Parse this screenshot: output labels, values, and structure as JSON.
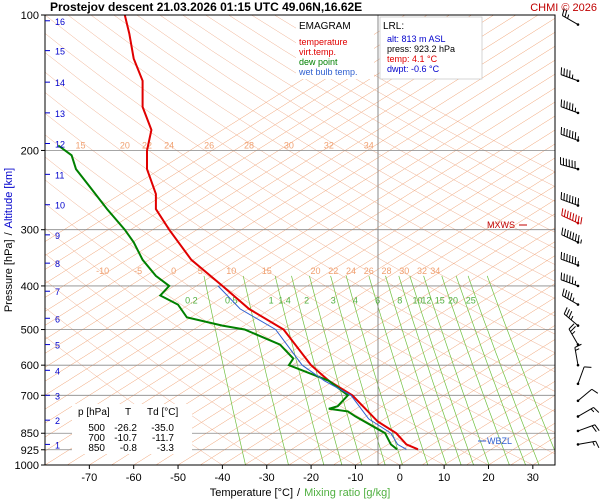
{
  "header": {
    "title": "Prostejov   descent   21.03.2026 01:15 UTC  49.06N,16.62E",
    "copyright": "CHMI © 2026"
  },
  "colors": {
    "temperature": "#e00000",
    "virtual_temp": "#e00000",
    "dew_point": "#008000",
    "wet_bulb": "#3060d0",
    "isotherm": "#f0a070",
    "dry_adiabat": "#f0b090",
    "mixing_ratio": "#70c040",
    "isobar": "#888888",
    "altitude_label": "#0000cc",
    "lrl_text": "#0000cc"
  },
  "legend": {
    "title": "EMAGRAM",
    "items": [
      {
        "label": "temperature",
        "color": "#e00000"
      },
      {
        "label": "virt.temp.",
        "color": "#e00000"
      },
      {
        "label": "dew point",
        "color": "#008000"
      },
      {
        "label": "wet bulb temp.",
        "color": "#3060d0"
      }
    ]
  },
  "lrl": {
    "title": "LRL:",
    "alt": "alt: 813 m ASL",
    "press": "press: 923.2 hPa",
    "temp": "temp: 4.1 °C",
    "dwpt": "dwpt: -0.6 °C"
  },
  "level_table": {
    "header": [
      "p [hPa]",
      "T",
      "Td [°C]"
    ],
    "rows": [
      [
        "500",
        "-26.2",
        "-35.0"
      ],
      [
        "700",
        "-10.7",
        "-11.7"
      ],
      [
        "850",
        "-0.8",
        "-3.3"
      ]
    ]
  },
  "markers": {
    "mxws": "MXWS",
    "wbzl": "WBZL"
  },
  "chart_data": {
    "type": "line",
    "xlabel": "Temperature [°C]",
    "xlabel_sep": "/",
    "xlabel2": "Mixing ratio [g/kg]",
    "ylabel": "Pressure [hPa]",
    "ylabel_sep": "/",
    "ylabel2": "Altitude [km]",
    "xlim": [
      -80,
      35
    ],
    "ylim": [
      1000,
      100
    ],
    "y_scale": "log",
    "x_ticks": [
      -70,
      -60,
      -50,
      -40,
      -30,
      -20,
      -10,
      0,
      10,
      20,
      30
    ],
    "pressure_ticks": [
      100,
      200,
      300,
      400,
      500,
      600,
      700,
      850,
      925,
      1000
    ],
    "isobar_lines": [
      200,
      300,
      400,
      500,
      600,
      700,
      850,
      925
    ],
    "altitude_ticks": [
      {
        "km": "1",
        "p": 900
      },
      {
        "km": "2",
        "p": 795
      },
      {
        "km": "3",
        "p": 700
      },
      {
        "km": "4",
        "p": 616
      },
      {
        "km": "5",
        "p": 540
      },
      {
        "km": "6",
        "p": 472
      },
      {
        "km": "7",
        "p": 411
      },
      {
        "km": "8",
        "p": 356
      },
      {
        "km": "9",
        "p": 308
      },
      {
        "km": "10",
        "p": 264
      },
      {
        "km": "11",
        "p": 226
      },
      {
        "km": "12",
        "p": 193
      },
      {
        "km": "13",
        "p": 165
      },
      {
        "km": "14",
        "p": 141
      },
      {
        "km": "15",
        "p": 120
      },
      {
        "km": "16",
        "p": 103
      }
    ],
    "isotherm_labels_upper": {
      "p": 200,
      "values": [
        "15",
        "20",
        "22",
        "24",
        "26",
        "28",
        "30",
        "32",
        "34"
      ],
      "temps": [
        -72,
        -62,
        -57,
        -52,
        -43,
        -34,
        -25,
        -16,
        -7
      ]
    },
    "isotherm_labels_lower": {
      "p": 380,
      "values": [
        "-10",
        "-5",
        "0",
        "5",
        "10",
        "15",
        "20",
        "22",
        "24",
        "26",
        "28",
        "30",
        "32",
        "34"
      ],
      "temps": [
        -67,
        -59,
        -51,
        -45,
        -38,
        -30,
        -19,
        -15,
        -11,
        -7,
        -3,
        1,
        5,
        8
      ]
    },
    "mixing_ratio_labels": {
      "p": 420,
      "values": [
        "0.2",
        "0.5",
        "1",
        "1.4",
        "2",
        "3",
        "4",
        "6",
        "8",
        "10",
        "12",
        "15",
        "20",
        "25"
      ],
      "temps": [
        -47,
        -38,
        -29,
        -26,
        -21,
        -15,
        -10,
        -5,
        0,
        4,
        6,
        9,
        12,
        16
      ]
    },
    "series": [
      {
        "name": "temperature",
        "points": [
          [
            4.1,
            923
          ],
          [
            1.5,
            900
          ],
          [
            -0.8,
            850
          ],
          [
            -5,
            800
          ],
          [
            -10.7,
            700
          ],
          [
            -16,
            650
          ],
          [
            -20,
            600
          ],
          [
            -26.2,
            500
          ],
          [
            -34,
            450
          ],
          [
            -40,
            400
          ],
          [
            -47,
            350
          ],
          [
            -52,
            300
          ],
          [
            -55,
            270
          ],
          [
            -55,
            250
          ],
          [
            -57,
            220
          ],
          [
            -57,
            200
          ],
          [
            -56,
            180
          ],
          [
            -58,
            160
          ],
          [
            -58,
            140
          ],
          [
            -60,
            125
          ],
          [
            -61,
            110
          ],
          [
            -62,
            100
          ]
        ]
      },
      {
        "name": "dew point",
        "points": [
          [
            -0.6,
            923
          ],
          [
            -2,
            900
          ],
          [
            -3.3,
            850
          ],
          [
            -10,
            780
          ],
          [
            -11.7,
            760
          ],
          [
            -16,
            750
          ],
          [
            -14,
            740
          ],
          [
            -11.7,
            700
          ],
          [
            -16,
            650
          ],
          [
            -25,
            600
          ],
          [
            -24,
            580
          ],
          [
            -27,
            540
          ],
          [
            -35,
            500
          ],
          [
            -40,
            490
          ],
          [
            -48,
            470
          ],
          [
            -50,
            440
          ],
          [
            -54,
            420
          ],
          [
            -52,
            400
          ],
          [
            -55,
            380
          ],
          [
            -58,
            350
          ],
          [
            -60,
            320
          ],
          [
            -62,
            300
          ],
          [
            -66,
            270
          ],
          [
            -70,
            240
          ],
          [
            -73,
            220
          ],
          [
            -74,
            205
          ],
          [
            -77,
            195
          ]
        ]
      },
      {
        "name": "wet bulb temp.",
        "points": [
          [
            1.5,
            923
          ],
          [
            -0.5,
            900
          ],
          [
            -2,
            850
          ],
          [
            -7,
            790
          ],
          [
            -11,
            700
          ],
          [
            -17,
            650
          ],
          [
            -22,
            600
          ],
          [
            -28,
            500
          ],
          [
            -36,
            450
          ],
          [
            -41,
            400
          ]
        ]
      }
    ],
    "wind_barbs": [
      {
        "p": 105,
        "dir": 300,
        "speed": 25
      },
      {
        "p": 140,
        "dir": 290,
        "speed": 45
      },
      {
        "p": 165,
        "dir": 290,
        "speed": 55
      },
      {
        "p": 190,
        "dir": 290,
        "speed": 65
      },
      {
        "p": 220,
        "dir": 285,
        "speed": 60
      },
      {
        "p": 265,
        "dir": 290,
        "speed": 70
      },
      {
        "p": 290,
        "dir": 295,
        "speed": 80
      },
      {
        "p": 320,
        "dir": 295,
        "speed": 75
      },
      {
        "p": 360,
        "dir": 290,
        "speed": 65
      },
      {
        "p": 400,
        "dir": 290,
        "speed": 55
      },
      {
        "p": 440,
        "dir": 300,
        "speed": 45
      },
      {
        "p": 490,
        "dir": 310,
        "speed": 35
      },
      {
        "p": 540,
        "dir": 330,
        "speed": 25
      },
      {
        "p": 600,
        "dir": 350,
        "speed": 15
      },
      {
        "p": 660,
        "dir": 20,
        "speed": 10
      },
      {
        "p": 720,
        "dir": 50,
        "speed": 10
      },
      {
        "p": 780,
        "dir": 60,
        "speed": 15
      },
      {
        "p": 840,
        "dir": 70,
        "speed": 20
      },
      {
        "p": 900,
        "dir": 80,
        "speed": 15
      }
    ]
  }
}
